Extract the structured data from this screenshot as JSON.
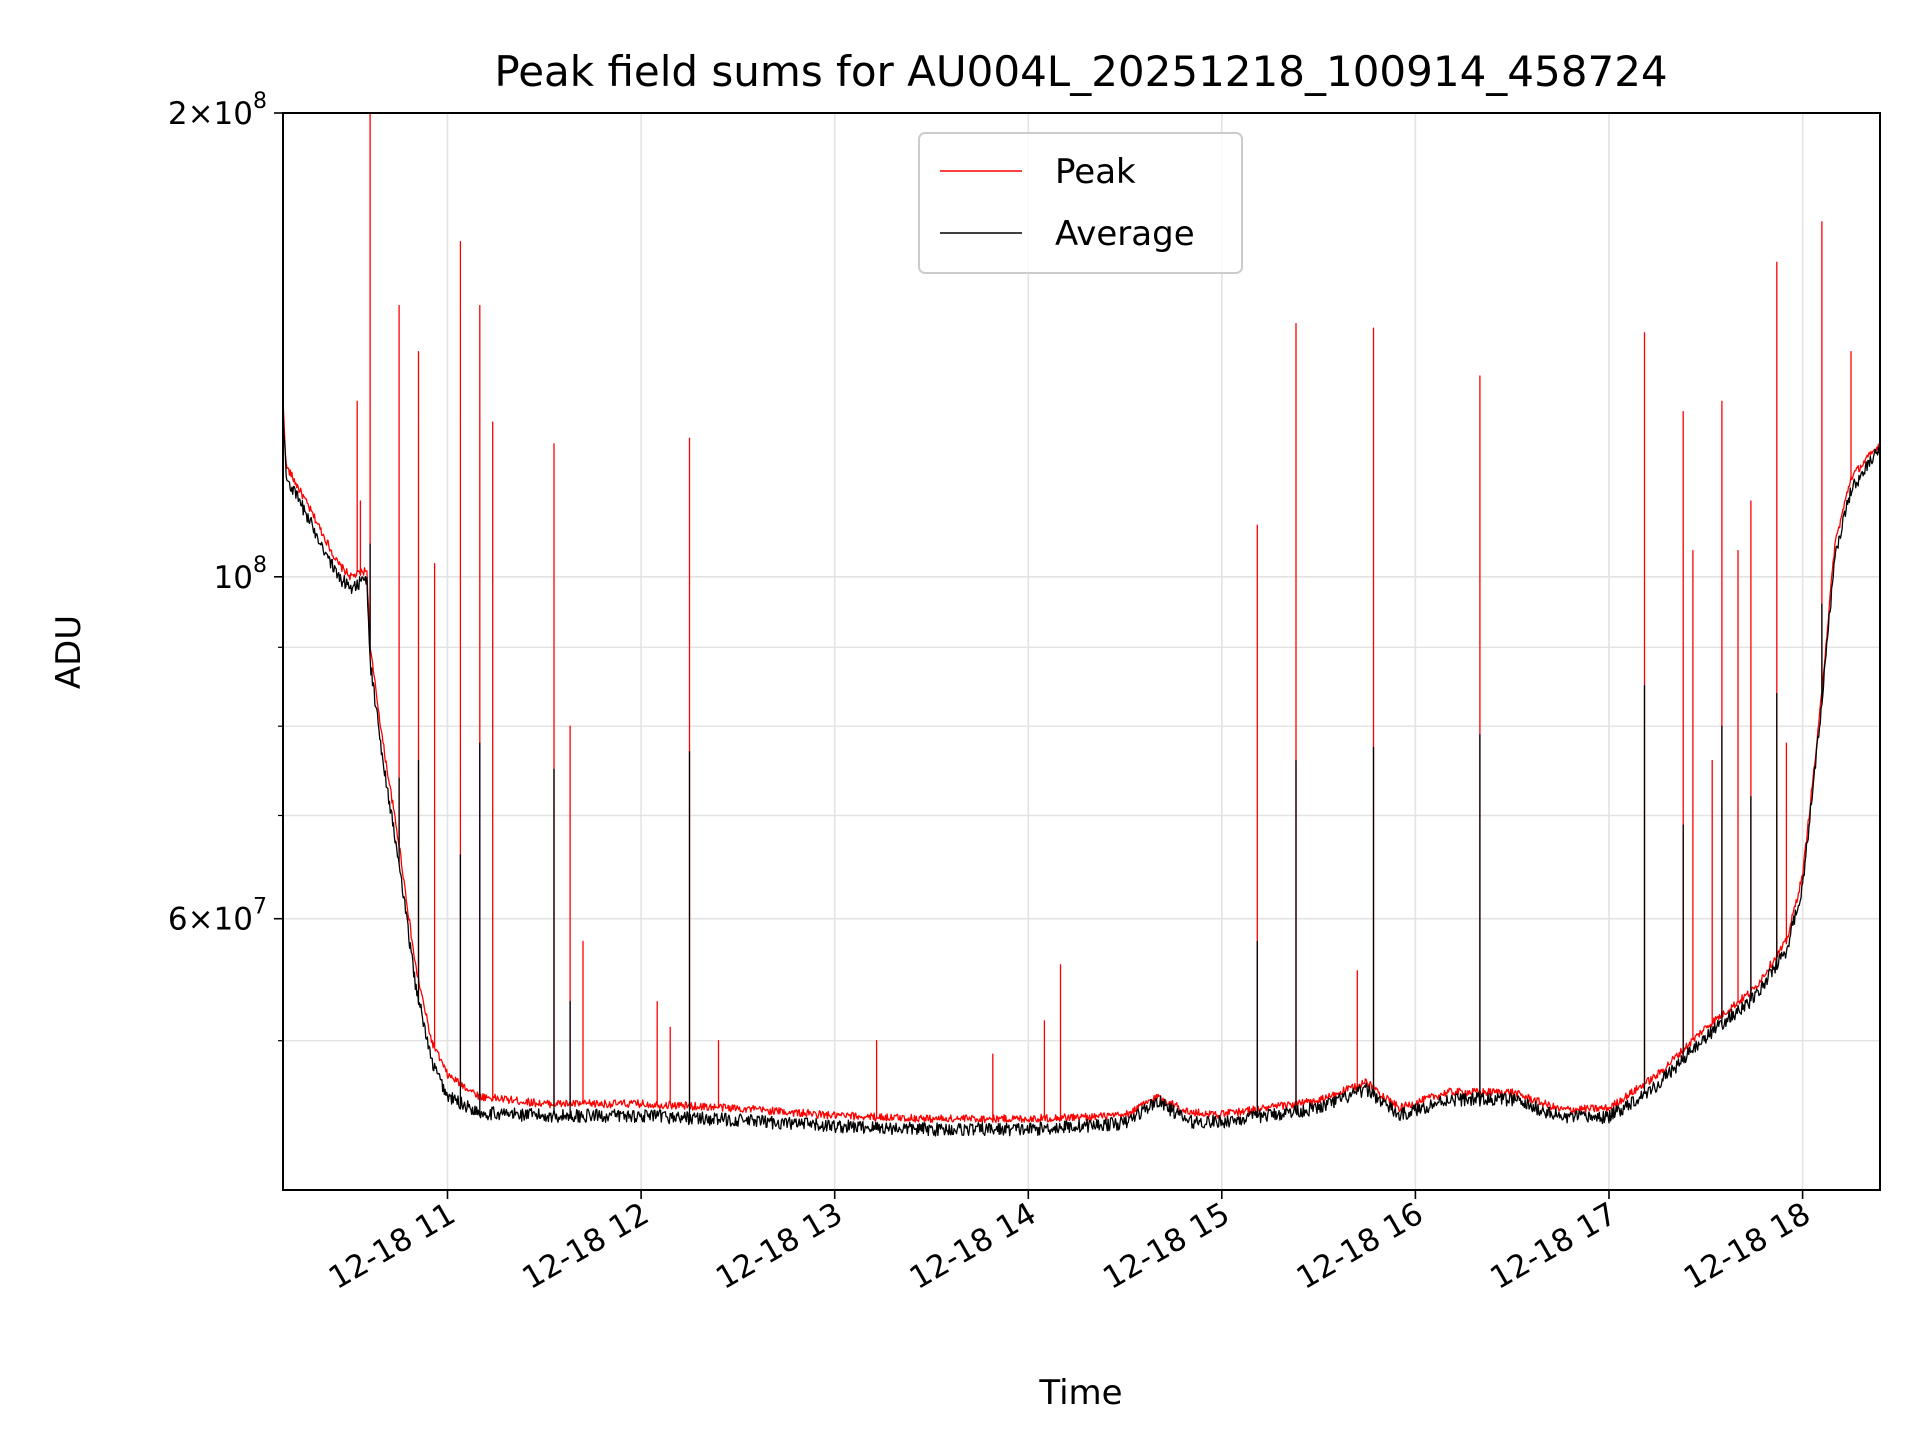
{
  "chart_data": {
    "type": "line",
    "title": "Peak field sums for AU004L_20251218_100914_458724",
    "xlabel": "Time",
    "ylabel": "ADU",
    "yscale": "log",
    "ylim": [
      40000000,
      200000000
    ],
    "xlim": [
      "2025-12-18 10:09",
      "2025-12-18 18:24"
    ],
    "grid": true,
    "legend_position": "top-center",
    "x_ticks": [
      {
        "t": "2025-12-18 11:00",
        "label": "12-18 11"
      },
      {
        "t": "2025-12-18 12:00",
        "label": "12-18 12"
      },
      {
        "t": "2025-12-18 13:00",
        "label": "12-18 13"
      },
      {
        "t": "2025-12-18 14:00",
        "label": "12-18 14"
      },
      {
        "t": "2025-12-18 15:00",
        "label": "12-18 15"
      },
      {
        "t": "2025-12-18 16:00",
        "label": "12-18 16"
      },
      {
        "t": "2025-12-18 17:00",
        "label": "12-18 17"
      },
      {
        "t": "2025-12-18 18:00",
        "label": "12-18 18"
      }
    ],
    "y_ticks": [
      {
        "v": 200000000,
        "mant": "2",
        "exp": "8"
      },
      {
        "v": 100000000,
        "mant": "",
        "exp": "8"
      },
      {
        "v": 60000000,
        "mant": "6",
        "exp": "7"
      }
    ],
    "y_minor_gridlines": [
      50000000,
      70000000,
      80000000,
      90000000
    ],
    "series": [
      {
        "name": "Peak",
        "color": "#ff0000",
        "baseline": [
          [
            "2025-12-18 10:09",
            130000000
          ],
          [
            "2025-12-18 10:10",
            118000000
          ],
          [
            "2025-12-18 10:15",
            113000000
          ],
          [
            "2025-12-18 10:20",
            108000000
          ],
          [
            "2025-12-18 10:26",
            102000000
          ],
          [
            "2025-12-18 10:30",
            100000000
          ],
          [
            "2025-12-18 10:35",
            101000000
          ],
          [
            "2025-12-18 10:36",
            90000000
          ],
          [
            "2025-12-18 10:40",
            78000000
          ],
          [
            "2025-12-18 10:45",
            67000000
          ],
          [
            "2025-12-18 10:50",
            56000000
          ],
          [
            "2025-12-18 10:55",
            50000000
          ],
          [
            "2025-12-18 11:00",
            47500000
          ],
          [
            "2025-12-18 11:10",
            46000000
          ],
          [
            "2025-12-18 11:30",
            45500000
          ],
          [
            "2025-12-18 12:00",
            45500000
          ],
          [
            "2025-12-18 12:30",
            45200000
          ],
          [
            "2025-12-18 13:00",
            44700000
          ],
          [
            "2025-12-18 13:30",
            44500000
          ],
          [
            "2025-12-18 14:00",
            44500000
          ],
          [
            "2025-12-18 14:30",
            44700000
          ],
          [
            "2025-12-18 14:40",
            46000000
          ],
          [
            "2025-12-18 14:50",
            44900000
          ],
          [
            "2025-12-18 15:00",
            44800000
          ],
          [
            "2025-12-18 15:30",
            45700000
          ],
          [
            "2025-12-18 15:45",
            47000000
          ],
          [
            "2025-12-18 15:55",
            45200000
          ],
          [
            "2025-12-18 16:10",
            46300000
          ],
          [
            "2025-12-18 16:30",
            46300000
          ],
          [
            "2025-12-18 16:45",
            45100000
          ],
          [
            "2025-12-18 17:00",
            45200000
          ],
          [
            "2025-12-18 17:15",
            47500000
          ],
          [
            "2025-12-18 17:30",
            51000000
          ],
          [
            "2025-12-18 17:45",
            54000000
          ],
          [
            "2025-12-18 17:55",
            58000000
          ],
          [
            "2025-12-18 18:00",
            64000000
          ],
          [
            "2025-12-18 18:05",
            80000000
          ],
          [
            "2025-12-18 18:10",
            105000000
          ],
          [
            "2025-12-18 18:15",
            116000000
          ],
          [
            "2025-12-18 18:24",
            122000000
          ]
        ],
        "spikes": [
          [
            "2025-12-18 10:32",
            130000000
          ],
          [
            "2025-12-18 10:33",
            112000000
          ],
          [
            "2025-12-18 10:36",
            200000000
          ],
          [
            "2025-12-18 10:45",
            150000000
          ],
          [
            "2025-12-18 10:51",
            140000000
          ],
          [
            "2025-12-18 10:56",
            102000000
          ],
          [
            "2025-12-18 11:04",
            165000000
          ],
          [
            "2025-12-18 11:10",
            150000000
          ],
          [
            "2025-12-18 11:14",
            126000000
          ],
          [
            "2025-12-18 11:33",
            122000000
          ],
          [
            "2025-12-18 11:38",
            80000000
          ],
          [
            "2025-12-18 11:42",
            58000000
          ],
          [
            "2025-12-18 12:05",
            53000000
          ],
          [
            "2025-12-18 12:09",
            51000000
          ],
          [
            "2025-12-18 12:15",
            123000000
          ],
          [
            "2025-12-18 12:24",
            50000000
          ],
          [
            "2025-12-18 13:13",
            50000000
          ],
          [
            "2025-12-18 13:49",
            49000000
          ],
          [
            "2025-12-18 14:05",
            51500000
          ],
          [
            "2025-12-18 14:10",
            56000000
          ],
          [
            "2025-12-18 15:11",
            108000000
          ],
          [
            "2025-12-18 15:23",
            146000000
          ],
          [
            "2025-12-18 15:42",
            55500000
          ],
          [
            "2025-12-18 15:47",
            145000000
          ],
          [
            "2025-12-18 16:20",
            135000000
          ],
          [
            "2025-12-18 17:11",
            144000000
          ],
          [
            "2025-12-18 17:23",
            128000000
          ],
          [
            "2025-12-18 17:26",
            104000000
          ],
          [
            "2025-12-18 17:32",
            76000000
          ],
          [
            "2025-12-18 17:35",
            130000000
          ],
          [
            "2025-12-18 17:40",
            104000000
          ],
          [
            "2025-12-18 17:44",
            112000000
          ],
          [
            "2025-12-18 17:52",
            160000000
          ],
          [
            "2025-12-18 17:55",
            78000000
          ],
          [
            "2025-12-18 18:06",
            170000000
          ],
          [
            "2025-12-18 18:15",
            140000000
          ]
        ]
      },
      {
        "name": "Average",
        "color": "#000000",
        "baseline": [
          [
            "2025-12-18 10:09",
            128000000
          ],
          [
            "2025-12-18 10:10",
            116000000
          ],
          [
            "2025-12-18 10:15",
            111000000
          ],
          [
            "2025-12-18 10:20",
            106000000
          ],
          [
            "2025-12-18 10:26",
            100000000
          ],
          [
            "2025-12-18 10:30",
            98500000
          ],
          [
            "2025-12-18 10:35",
            99500000
          ],
          [
            "2025-12-18 10:36",
            88000000
          ],
          [
            "2025-12-18 10:40",
            76000000
          ],
          [
            "2025-12-18 10:45",
            65000000
          ],
          [
            "2025-12-18 10:50",
            54500000
          ],
          [
            "2025-12-18 10:55",
            48500000
          ],
          [
            "2025-12-18 11:00",
            46000000
          ],
          [
            "2025-12-18 11:10",
            44900000
          ],
          [
            "2025-12-18 11:30",
            44700000
          ],
          [
            "2025-12-18 12:00",
            44700000
          ],
          [
            "2025-12-18 12:30",
            44400000
          ],
          [
            "2025-12-18 13:00",
            44000000
          ],
          [
            "2025-12-18 13:30",
            43800000
          ],
          [
            "2025-12-18 14:00",
            43800000
          ],
          [
            "2025-12-18 14:30",
            44200000
          ],
          [
            "2025-12-18 14:40",
            45700000
          ],
          [
            "2025-12-18 14:50",
            44300000
          ],
          [
            "2025-12-18 15:00",
            44300000
          ],
          [
            "2025-12-18 15:30",
            45200000
          ],
          [
            "2025-12-18 15:45",
            46500000
          ],
          [
            "2025-12-18 15:55",
            44700000
          ],
          [
            "2025-12-18 16:10",
            45800000
          ],
          [
            "2025-12-18 16:30",
            45800000
          ],
          [
            "2025-12-18 16:45",
            44600000
          ],
          [
            "2025-12-18 17:00",
            44600000
          ],
          [
            "2025-12-18 17:15",
            46800000
          ],
          [
            "2025-12-18 17:30",
            50300000
          ],
          [
            "2025-12-18 17:45",
            53300000
          ],
          [
            "2025-12-18 17:55",
            57200000
          ],
          [
            "2025-12-18 18:00",
            63000000
          ],
          [
            "2025-12-18 18:05",
            79000000
          ],
          [
            "2025-12-18 18:10",
            103000000
          ],
          [
            "2025-12-18 18:15",
            114000000
          ],
          [
            "2025-12-18 18:24",
            121000000
          ]
        ],
        "spikes": [
          [
            "2025-12-18 10:36",
            105000000
          ],
          [
            "2025-12-18 10:45",
            74000000
          ],
          [
            "2025-12-18 10:51",
            76000000
          ],
          [
            "2025-12-18 11:04",
            66000000
          ],
          [
            "2025-12-18 11:10",
            78000000
          ],
          [
            "2025-12-18 11:33",
            75000000
          ],
          [
            "2025-12-18 11:38",
            53000000
          ],
          [
            "2025-12-18 12:15",
            77000000
          ],
          [
            "2025-12-18 15:11",
            58000000
          ],
          [
            "2025-12-18 15:23",
            76000000
          ],
          [
            "2025-12-18 15:47",
            77500000
          ],
          [
            "2025-12-18 16:20",
            79000000
          ],
          [
            "2025-12-18 17:11",
            85000000
          ],
          [
            "2025-12-18 17:23",
            69000000
          ],
          [
            "2025-12-18 17:35",
            80000000
          ],
          [
            "2025-12-18 17:44",
            72000000
          ],
          [
            "2025-12-18 17:52",
            84000000
          ],
          [
            "2025-12-18 18:06",
            96000000
          ]
        ]
      }
    ]
  }
}
